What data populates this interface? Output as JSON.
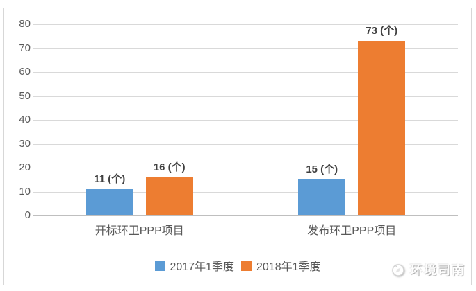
{
  "chart_data": {
    "type": "bar",
    "title": "",
    "xlabel": "",
    "ylabel": "",
    "categories": [
      "开标环卫PPP项目",
      "发布环卫PPP项目"
    ],
    "series": [
      {
        "name": "2017年1季度",
        "color": "#5B9BD5",
        "values": [
          11,
          15
        ],
        "data_labels": [
          "11 (个)",
          "15 (个)"
        ]
      },
      {
        "name": "2018年1季度",
        "color": "#ED7D31",
        "values": [
          16,
          73
        ],
        "data_labels": [
          "16 (个)",
          "73 (个)"
        ]
      }
    ],
    "ylim": [
      0,
      80
    ],
    "yticks": [
      0,
      10,
      20,
      30,
      40,
      50,
      60,
      70,
      80
    ],
    "grid": "horizontal",
    "legend_position": "bottom"
  },
  "watermark": {
    "text": "环境司南",
    "icon": "compass-icon"
  },
  "colors": {
    "series_2017": "#5B9BD5",
    "series_2018": "#ED7D31",
    "gridline": "#D9D9D9",
    "axis_line": "#BFBFBF",
    "tick_label": "#595959",
    "data_label": "#404040",
    "frame_border": "#D7D7D7",
    "background": "#FFFFFF"
  }
}
